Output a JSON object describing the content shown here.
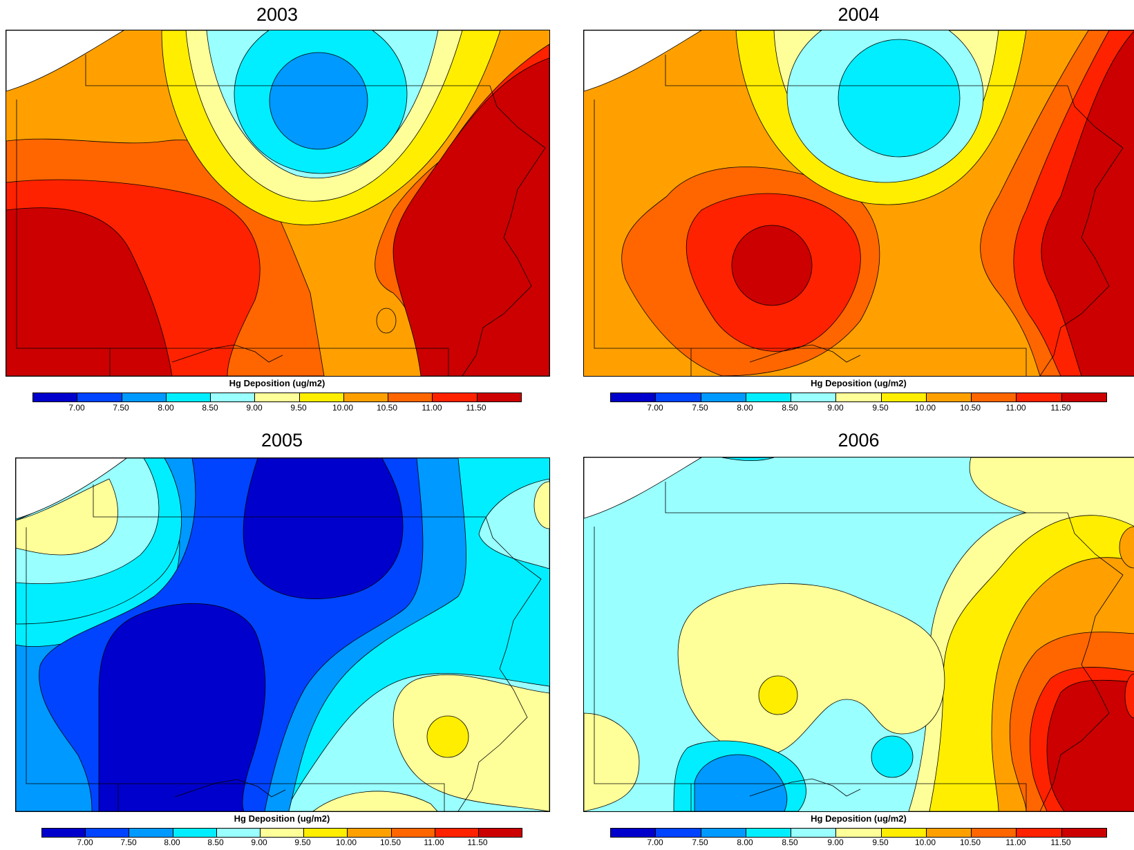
{
  "colorbar": {
    "title": "Hg Deposition (ug/m2)",
    "tick_labels": [
      "7.00",
      "7.50",
      "8.00",
      "8.50",
      "9.00",
      "9.50",
      "10.00",
      "10.50",
      "11.00",
      "11.50"
    ],
    "colors": [
      "#0000cc",
      "#0044ff",
      "#0099ff",
      "#00eeff",
      "#99ffff",
      "#ffff99",
      "#ffee00",
      "#ffa000",
      "#ff6600",
      "#ff2200",
      "#cc0000"
    ]
  },
  "panels": [
    {
      "year": "2003"
    },
    {
      "year": "2004"
    },
    {
      "year": "2005"
    },
    {
      "year": "2006"
    }
  ]
}
